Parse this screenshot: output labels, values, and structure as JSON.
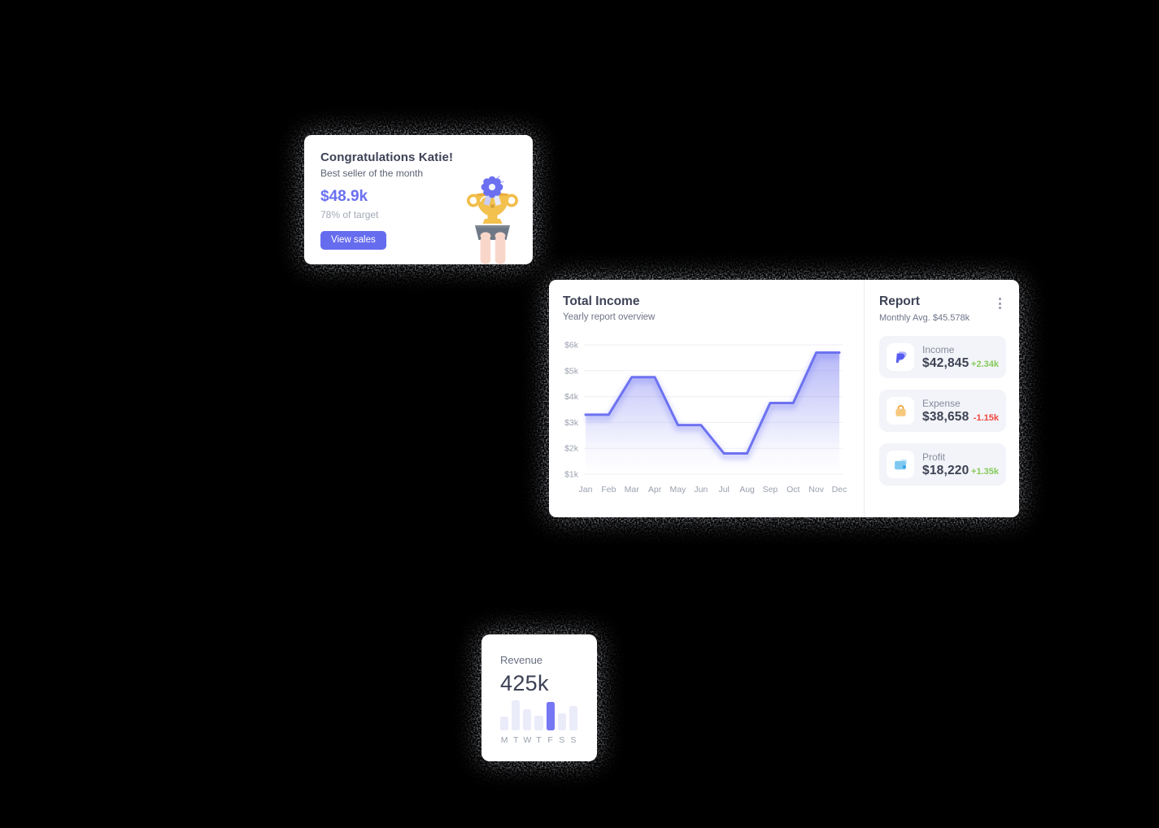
{
  "canvas": {
    "background": "#000000",
    "card_background": "#ffffff",
    "accent_color": "#666cee"
  },
  "congrats_card": {
    "title": "Congratulations Katie!",
    "subtitle": "Best seller of the month",
    "amount": "$48.9k",
    "target_note": "78% of target",
    "view_sales_button": "View sales",
    "illustration": "trophy-held-by-hands",
    "amount_color": "#6a70f0"
  },
  "income_card": {
    "title": "Total Income",
    "subtitle": "Yearly report overview"
  },
  "report_panel": {
    "title": "Report",
    "subtitle": "Monthly Avg. $45.578k",
    "menu_icon": "kebab-menu-icon",
    "rows": [
      {
        "icon": "paypal-icon",
        "label": "Income",
        "value": "$42,845",
        "delta": "+2.34k",
        "trend": "up"
      },
      {
        "icon": "shopping-bag-icon",
        "label": "Expense",
        "value": "$38,658",
        "delta": "-1.15k",
        "trend": "down"
      },
      {
        "icon": "wallet-icon",
        "label": "Profit",
        "value": "$18,220",
        "delta": "+1.35k",
        "trend": "up"
      }
    ],
    "trend_up_color": "#85cb5a",
    "trend_down_color": "#ef4640"
  },
  "revenue_card": {
    "title": "Revenue",
    "value": "425k"
  },
  "chart_data": [
    {
      "type": "area",
      "title": "Total Income",
      "x": [
        "Jan",
        "Feb",
        "Mar",
        "Apr",
        "May",
        "Jun",
        "Jul",
        "Aug",
        "Sep",
        "Oct",
        "Nov",
        "Dec"
      ],
      "values_k": [
        3.3,
        3.3,
        4.75,
        4.75,
        2.9,
        2.9,
        1.8,
        1.8,
        3.75,
        3.75,
        5.7,
        5.7
      ],
      "y_ticks_top_down": [
        "$6k",
        "$5k",
        "$4k",
        "$3k",
        "$2k",
        "$1k"
      ],
      "ylim_k": [
        1,
        6
      ],
      "grid": true,
      "legend": "none",
      "line_color": "#6d72f0"
    },
    {
      "type": "bar",
      "title": "Revenue by weekday",
      "categories": [
        "M",
        "T",
        "W",
        "T",
        "F",
        "S",
        "S"
      ],
      "values_pct": [
        46,
        100,
        69,
        50,
        94,
        58,
        80
      ],
      "highlight_index": 4,
      "bar_color": "#ebecfa",
      "highlight_color": "#7577f3",
      "ylim": [
        0,
        100
      ],
      "grid": false
    }
  ]
}
